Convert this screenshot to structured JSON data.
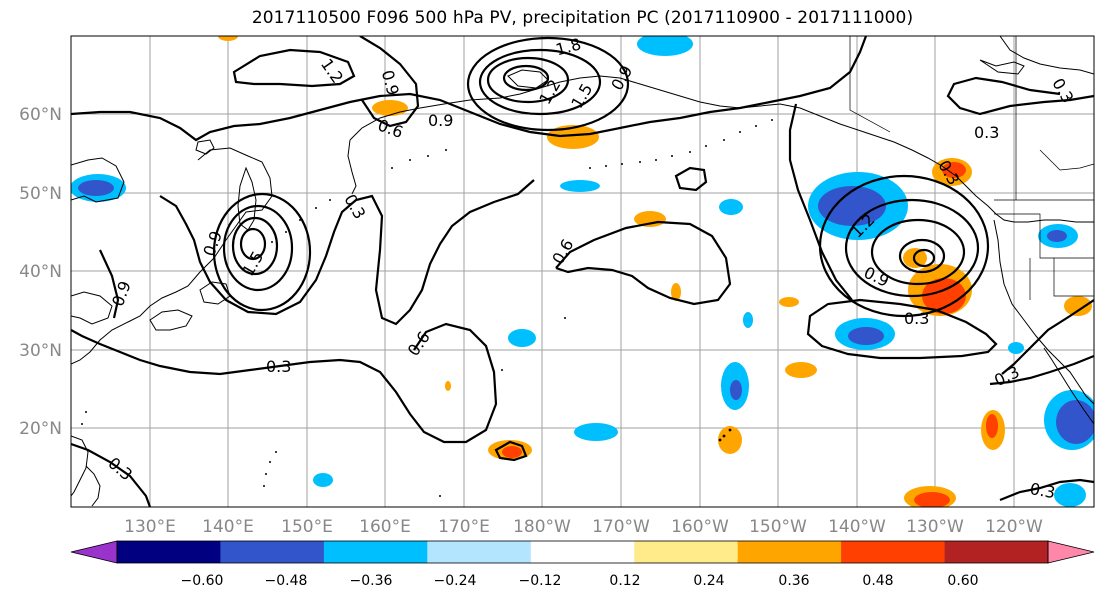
{
  "title": "2017110500 F096 500 hPa PV, precipitation PC (2017110900 - 2017111000)",
  "lon_labels": [
    "130°E",
    "140°E",
    "150°E",
    "160°E",
    "170°E",
    "180°W",
    "170°W",
    "160°W",
    "150°W",
    "140°W",
    "130°W",
    "120°W"
  ],
  "lat_labels": [
    "60°N",
    "50°N",
    "40°N",
    "30°N",
    "20°N"
  ],
  "contour_labels": [
    "1.2",
    "0.9",
    "1.8",
    "1.5",
    "1.2",
    "0.9",
    "0.6",
    "0.9",
    "0.3",
    "0.9",
    "1.5",
    "0.6",
    "0.6",
    "0.3",
    "0.3",
    "0.3",
    "1.2",
    "0.9",
    "0.3",
    "0.3",
    "0.3",
    "0.3",
    "0.9",
    "0.3"
  ],
  "colorbar": {
    "ticks": [
      "−0.60",
      "−0.48",
      "−0.36",
      "−0.24",
      "−0.12",
      "0.12",
      "0.24",
      "0.36",
      "0.48",
      "0.60"
    ],
    "colors": [
      "#9933cc",
      "#000080",
      "#3355cc",
      "#00bfff",
      "#b3e5ff",
      "#ffffff",
      "#ffeb8a",
      "#ffa500",
      "#ff4000",
      "#b22222",
      "#ff88aa"
    ]
  },
  "colors": {
    "grid": "#a0a0a0",
    "axis_text": "#888888",
    "contour": "#000000"
  }
}
